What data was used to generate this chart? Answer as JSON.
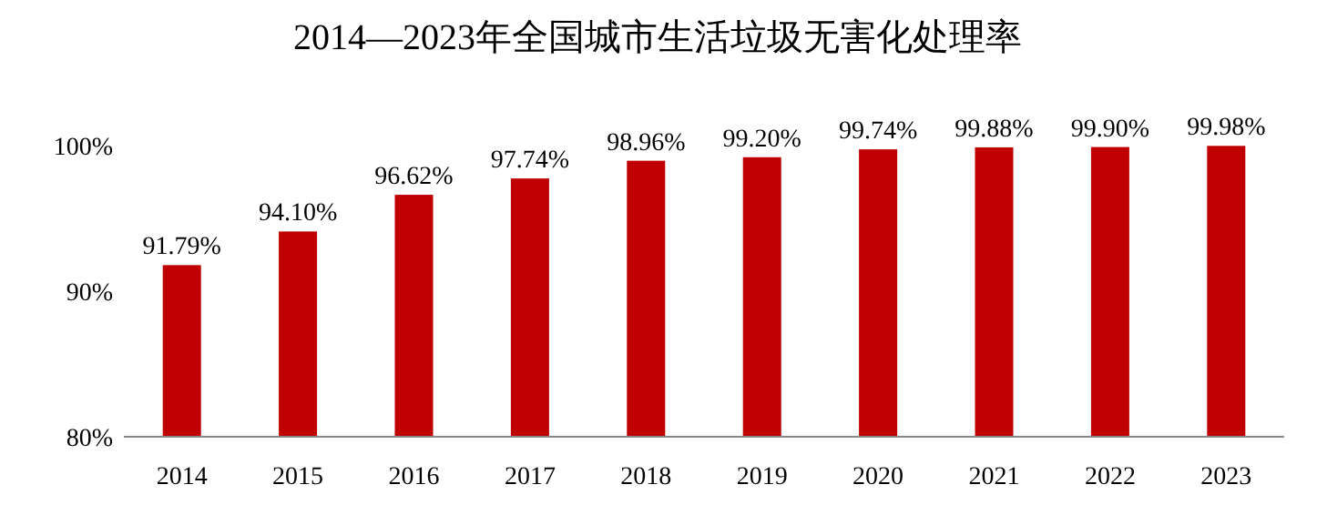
{
  "chart_data": {
    "type": "bar",
    "title": "2014—2023年全国城市生活垃圾无害化处理率",
    "categories": [
      "2014",
      "2015",
      "2016",
      "2017",
      "2018",
      "2019",
      "2020",
      "2021",
      "2022",
      "2023"
    ],
    "values": [
      91.79,
      94.1,
      96.62,
      97.74,
      98.96,
      99.2,
      99.74,
      99.88,
      99.9,
      99.98
    ],
    "value_labels": [
      "91.79%",
      "94.10%",
      "96.62%",
      "97.74%",
      "98.96%",
      "99.20%",
      "99.74%",
      "99.88%",
      "99.90%",
      "99.98%"
    ],
    "color": "#c00000",
    "ylim": [
      80,
      100
    ],
    "yticks": [
      {
        "value": 80,
        "label": "80%"
      },
      {
        "value": 90,
        "label": "90%"
      },
      {
        "value": 100,
        "label": "100%"
      }
    ]
  }
}
